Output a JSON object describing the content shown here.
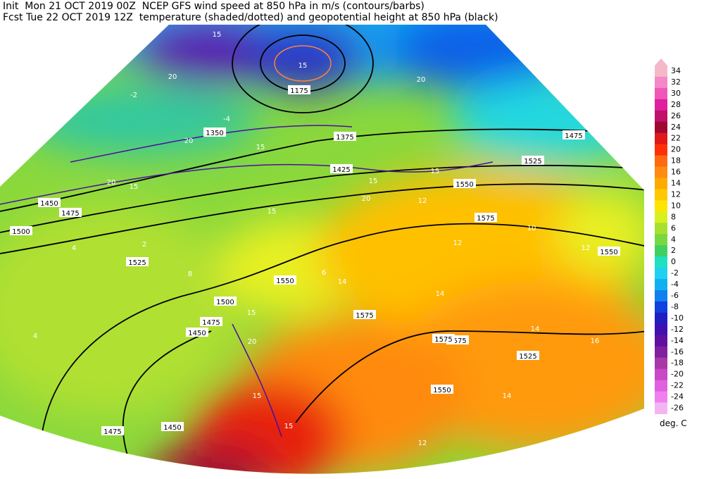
{
  "header": {
    "line1": "Init  Mon 21 OCT 2019 00Z  NCEP GFS wind speed at 850 hPa in m/s (contours/barbs)",
    "line2": "Fcst Tue 22 OCT 2019 12Z  temperature (shaded/dotted) and geopotential height at 850 hPa (black)"
  },
  "colorbar": {
    "levels": [
      {
        "label": 34,
        "color": "#f4b8c8"
      },
      {
        "label": 32,
        "color": "#f488c8"
      },
      {
        "label": 30,
        "color": "#f058b8"
      },
      {
        "label": 28,
        "color": "#e020a0"
      },
      {
        "label": 26,
        "color": "#c0106c"
      },
      {
        "label": 24,
        "color": "#a00832"
      },
      {
        "label": 22,
        "color": "#e01818"
      },
      {
        "label": 20,
        "color": "#ff3008"
      },
      {
        "label": 18,
        "color": "#ff6a10"
      },
      {
        "label": 16,
        "color": "#ff8c10"
      },
      {
        "label": 14,
        "color": "#ffaa00"
      },
      {
        "label": 12,
        "color": "#ffc800"
      },
      {
        "label": 10,
        "color": "#ffe400"
      },
      {
        "label": 8,
        "color": "#d8f020"
      },
      {
        "label": 6,
        "color": "#a8e030"
      },
      {
        "label": 4,
        "color": "#78d840"
      },
      {
        "label": 2,
        "color": "#40d060"
      },
      {
        "label": 0,
        "color": "#20e0c0"
      },
      {
        "label": -2,
        "color": "#20d0f0"
      },
      {
        "label": -4,
        "color": "#10b0f0"
      },
      {
        "label": -6,
        "color": "#1080f0"
      },
      {
        "label": -8,
        "color": "#1040e0"
      },
      {
        "label": -10,
        "color": "#2020c0"
      },
      {
        "label": -12,
        "color": "#4010b0"
      },
      {
        "label": -14,
        "color": "#6010a0"
      },
      {
        "label": -16,
        "color": "#8020a0"
      },
      {
        "label": -18,
        "color": "#a838a8"
      },
      {
        "label": -20,
        "color": "#c848c8"
      },
      {
        "label": -22,
        "color": "#e060e0"
      },
      {
        "label": -24,
        "color": "#f080f0"
      },
      {
        "label": -26,
        "color": "#f4b4f4"
      }
    ],
    "unit": "deg. C"
  },
  "map": {
    "height_labels": [
      "1175",
      "1350",
      "1375",
      "1425",
      "1450",
      "1475",
      "1500",
      "1525",
      "1550",
      "1575",
      "1575",
      "1550",
      "1525",
      "1550",
      "1575",
      "1575",
      "1525",
      "1500",
      "1475",
      "1450",
      "1475",
      "1450",
      "1550",
      "1475"
    ],
    "wind_labels": [
      "15",
      "15",
      "20",
      "15",
      "20",
      "15",
      "20",
      "15",
      "15",
      "20",
      "15",
      "15",
      "20",
      "15",
      "15",
      "20"
    ],
    "temperature_labels": [
      "-2",
      "-4",
      "4",
      "2",
      "8",
      "12",
      "12",
      "14",
      "14",
      "14",
      "12",
      "10",
      "16",
      "14",
      "12",
      "6",
      "4"
    ]
  }
}
